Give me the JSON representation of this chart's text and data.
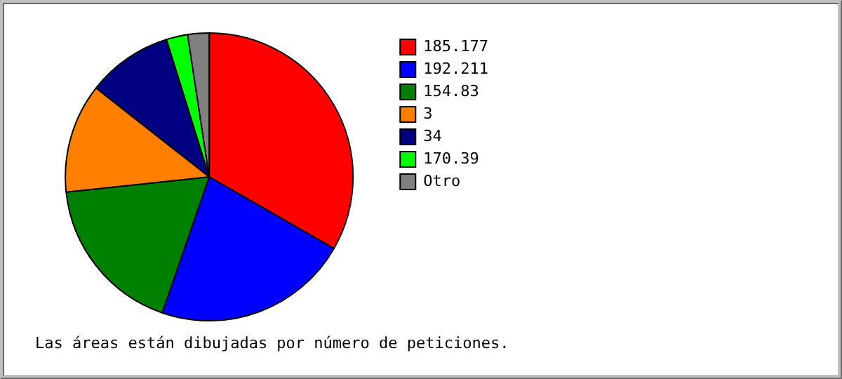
{
  "chart_data": {
    "type": "pie",
    "categories": [
      "185.177",
      "192.211",
      "154.83",
      "3",
      "34",
      "170.39",
      "Otro"
    ],
    "values": [
      33.3,
      22,
      18,
      12.3,
      9.6,
      2.4,
      2.4
    ],
    "colors": [
      "#ff0000",
      "#0000ff",
      "#008000",
      "#ff8000",
      "#000080",
      "#00ff00",
      "#808080"
    ],
    "legend": "right",
    "annotations": [
      "Las áreas están dibujadas por número de peticiones."
    ]
  }
}
